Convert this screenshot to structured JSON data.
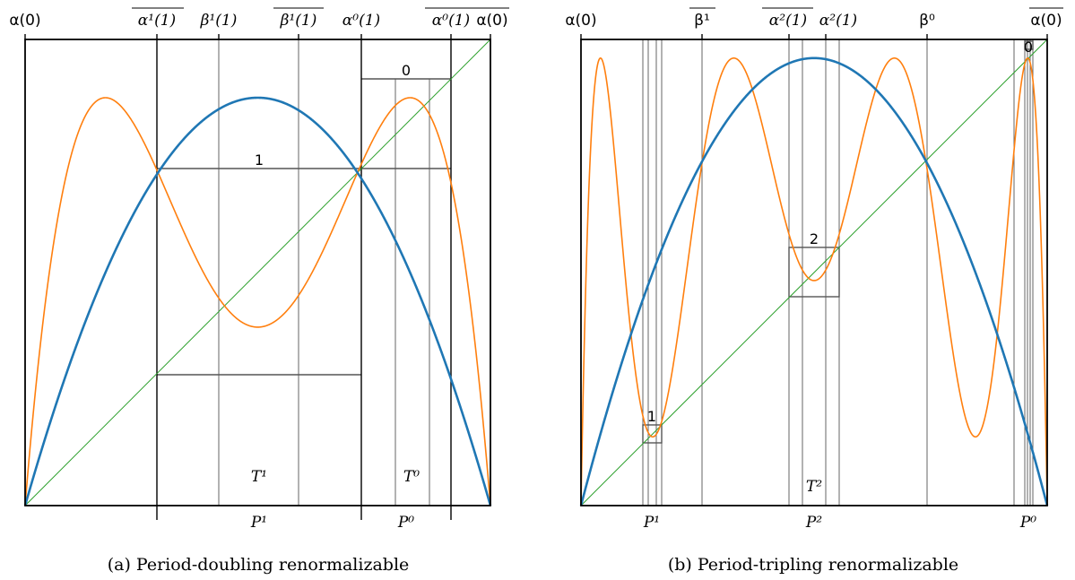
{
  "colors": {
    "map": "#1f77b4",
    "iterate": "#ff7f0e",
    "diagonal": "#2ca02c",
    "box": "#555555",
    "grid": "#666666",
    "frame": "#000000"
  },
  "panels": [
    {
      "caption": "(a) Period-doubling renormalizable",
      "top_labels": [
        {
          "text": "α(0)",
          "style": "sans",
          "over": false
        },
        {
          "text": "α¹(1)",
          "style": "serif",
          "over": true
        },
        {
          "text": "β¹(1)",
          "style": "serif",
          "over": false
        },
        {
          "text": "β¹(1)",
          "style": "serif",
          "over": true
        },
        {
          "text": "α⁰(1)",
          "style": "serif",
          "over": false
        },
        {
          "text": "α⁰(1)",
          "style": "serif",
          "over": true
        },
        {
          "text": "α(0)",
          "style": "sans",
          "over": true
        }
      ],
      "box_labels": [
        "0",
        "1"
      ],
      "inner_labels": [
        "T¹",
        "T⁰"
      ],
      "bottom_labels": [
        "P¹",
        "P⁰"
      ]
    },
    {
      "caption": "(b) Period-tripling renormalizable",
      "top_labels": [
        {
          "text": "α(0)",
          "style": "sans",
          "over": false
        },
        {
          "text": "β¹",
          "style": "sans",
          "over": true
        },
        {
          "text": "α²(1)",
          "style": "serif",
          "over": true
        },
        {
          "text": "α²(1)",
          "style": "serif",
          "over": false
        },
        {
          "text": "β⁰",
          "style": "sans",
          "over": false
        },
        {
          "text": "α(0)",
          "style": "sans",
          "over": true
        }
      ],
      "box_labels": [
        "1",
        "2",
        "0"
      ],
      "inner_labels": [
        "T²"
      ],
      "bottom_labels": [
        "P¹",
        "P²",
        "P⁰"
      ]
    }
  ]
}
